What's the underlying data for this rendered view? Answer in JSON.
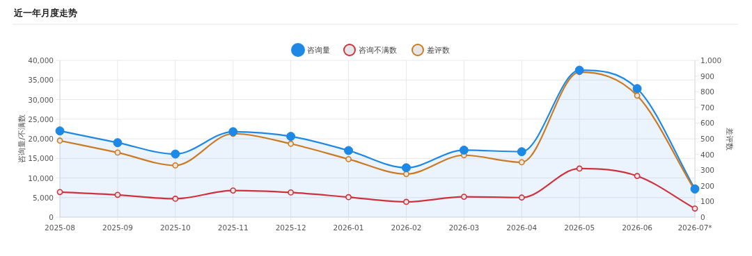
{
  "chart_data": {
    "type": "line",
    "title": "近一年月度走势",
    "ylabel": "咨询量/不满数",
    "y2label": "差评数",
    "categories": [
      "2025-08",
      "2025-09",
      "2025-10",
      "2025-11",
      "2025-12",
      "2026-01",
      "2026-02",
      "2026-03",
      "2026-04",
      "2026-05",
      "2026-06",
      "2026-07*"
    ],
    "series": [
      {
        "name": "咨询量",
        "type": "area",
        "color": "#1e88e5",
        "values": [
          22000,
          19000,
          16100,
          21800,
          20600,
          17000,
          12600,
          17100,
          16700,
          37500,
          32800,
          7200
        ]
      },
      {
        "name": "咨询不满数",
        "color": "#d0313c",
        "values": [
          6400,
          5700,
          4700,
          6800,
          6300,
          5100,
          3900,
          5200,
          5000,
          12400,
          10500,
          2200
        ]
      },
      {
        "name": "差评数",
        "color": "#cc7a22",
        "axis": "y2",
        "values": [
          488,
          412,
          330,
          532,
          468,
          370,
          275,
          395,
          350,
          925,
          775,
          170
        ]
      }
    ],
    "ylim": [
      0,
      40000
    ],
    "yticks": [
      0,
      {
        "value": 5000,
        "label": "5,000"
      },
      {
        "value": 10000,
        "label": "10,000"
      },
      {
        "value": 15000,
        "label": "15,000"
      },
      {
        "value": 20000,
        "label": "20,000"
      },
      {
        "value": 25000,
        "label": "25,000"
      },
      {
        "value": 30000,
        "label": "30,000"
      },
      {
        "value": 35000,
        "label": "35,000"
      },
      {
        "value": 40000,
        "label": "40,000"
      }
    ],
    "y2lim": [
      0,
      1000
    ],
    "y2ticks": [
      0,
      100,
      200,
      300,
      400,
      500,
      600,
      700,
      800,
      900,
      {
        "value": 1000,
        "label": "1,000"
      }
    ],
    "grid": true,
    "legend": "top",
    "marker": "circle",
    "line_style": "solid"
  }
}
